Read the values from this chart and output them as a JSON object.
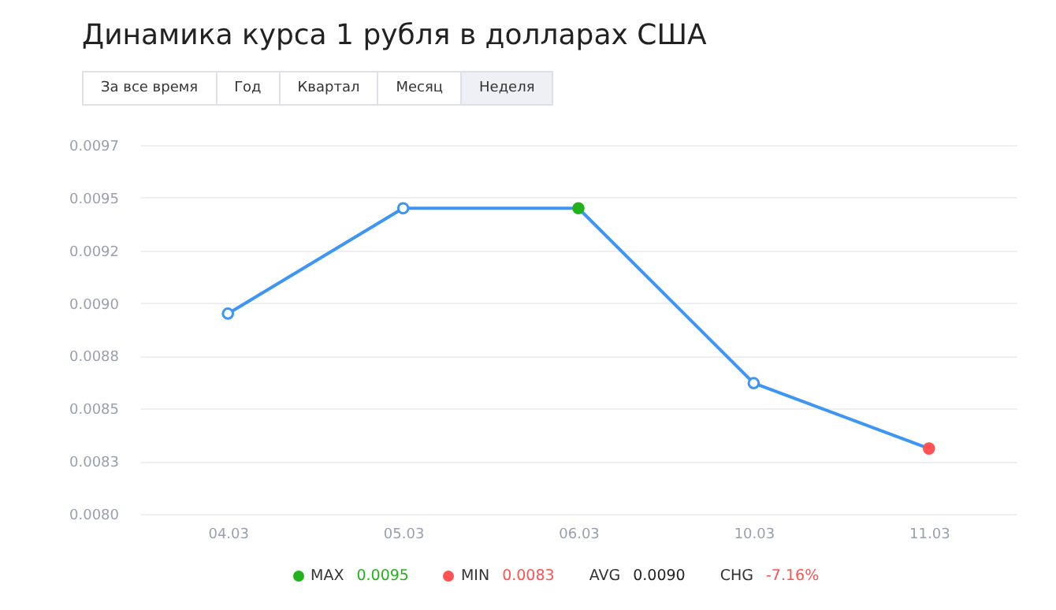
{
  "chart_data": {
    "type": "line",
    "title": "Динамика курса 1 рубля в долларах США",
    "annotations": [
      "За все время",
      "Год",
      "Квартал",
      "Месяц",
      "Неделя",
      "MAX",
      "0.0095",
      "MIN",
      "0.0083",
      "AVG",
      "0.0090",
      "CHG",
      "-7.16%"
    ],
    "categories": [
      "04.03",
      "05.03",
      "06.03",
      "10.03",
      "11.03"
    ],
    "series": [
      {
        "color": "#3d95f5",
        "colors": [
          "#3d95f5",
          "#3d95f5",
          "#22b21c",
          "#3d95f5",
          "#ff5252"
        ],
        "values": [
          0.00895,
          0.00945,
          0.00945,
          0.00862,
          0.00831
        ]
      }
    ],
    "ylim": [
      0.008,
      0.00975
    ],
    "yticks": [
      {
        "value": 0.008,
        "label": "0.0080"
      },
      {
        "value": 0.00825,
        "label": "0.0083"
      },
      {
        "value": 0.0085,
        "label": "0.0085"
      },
      {
        "value": 0.00875,
        "label": "0.0088"
      },
      {
        "value": 0.009,
        "label": "0.0090"
      },
      {
        "value": 0.00925,
        "label": "0.0092"
      },
      {
        "value": 0.0095,
        "label": "0.0095"
      },
      {
        "value": 0.00975,
        "label": "0.0097"
      }
    ],
    "grid": "y",
    "marker": "circle",
    "line_style": "solid"
  }
}
